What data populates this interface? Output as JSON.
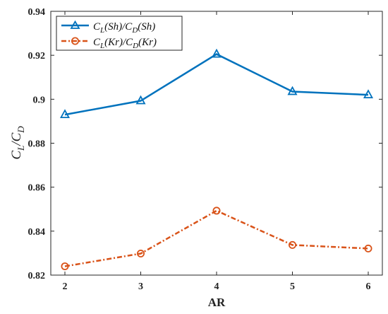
{
  "chart_data": {
    "type": "line",
    "xlabel": "AR",
    "ylabel": "C_L/C_D",
    "xlim": [
      2,
      6
    ],
    "ylim": [
      0.82,
      0.94
    ],
    "x": [
      2,
      3,
      4,
      5,
      6
    ],
    "xticks": [
      "2",
      "3",
      "4",
      "5",
      "6"
    ],
    "yticks": [
      "0.82",
      "0.84",
      "0.86",
      "0.88",
      "0.9",
      "0.92",
      "0.94"
    ],
    "legend_position": "top-left",
    "grid": false,
    "series": [
      {
        "name": "C_L(Sh)/C_D(Sh)",
        "values": [
          0.893,
          0.8993,
          0.9205,
          0.9035,
          0.902
        ],
        "color": "#0072BD",
        "marker": "triangle",
        "line_style": "solid"
      },
      {
        "name": "C_L(Kr)/C_D(Kr)",
        "values": [
          0.824,
          0.8298,
          0.8493,
          0.8337,
          0.8321
        ],
        "color": "#D95319",
        "marker": "circle",
        "line_style": "dash-dot"
      }
    ]
  }
}
